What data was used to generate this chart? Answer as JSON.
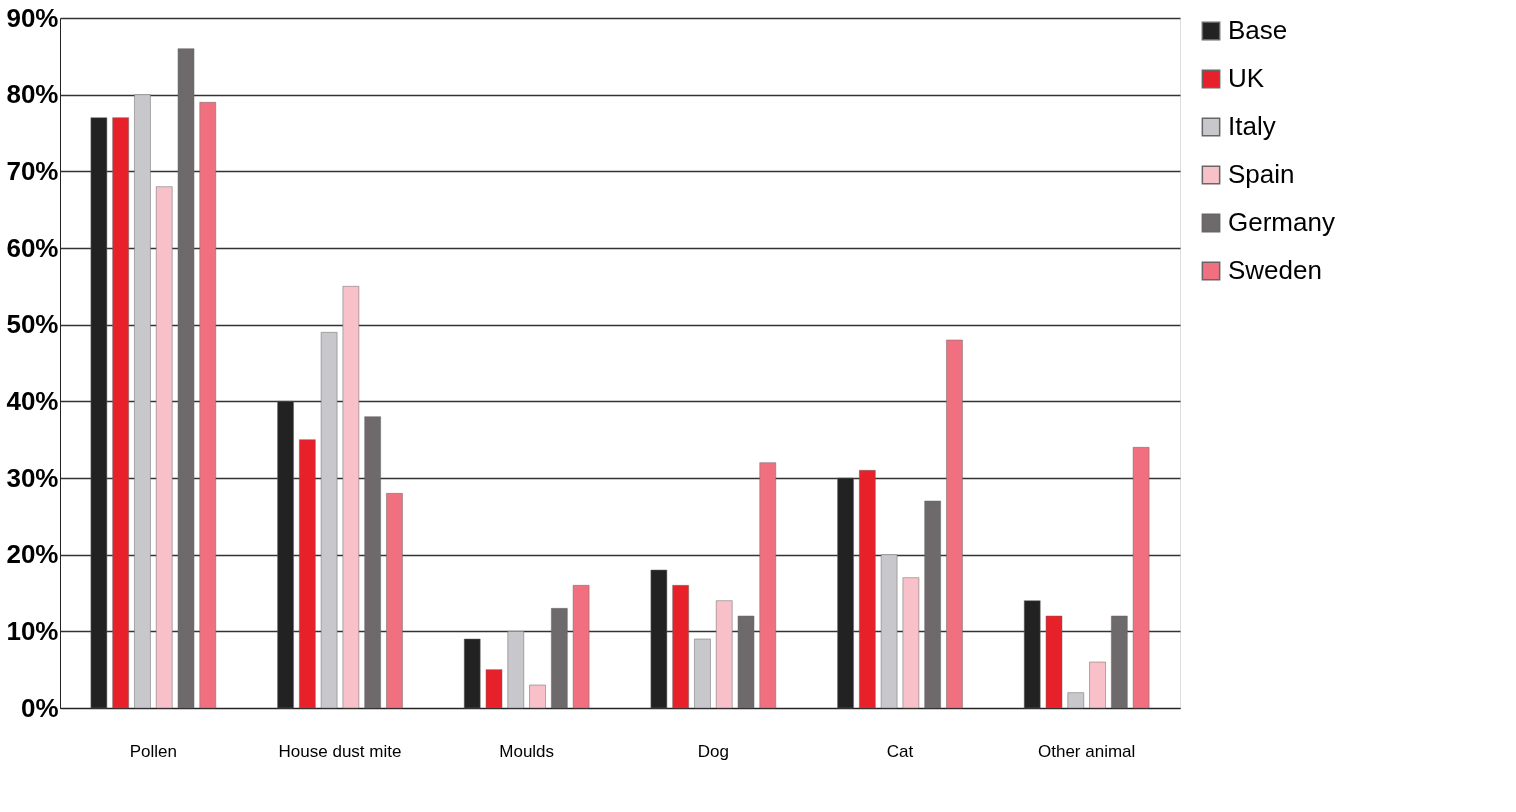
{
  "chart_data": {
    "type": "bar",
    "categories": [
      "Pollen",
      "House dust mite",
      "Moulds",
      "Dog",
      "Cat",
      "Other animal"
    ],
    "series": [
      {
        "name": "Base",
        "color": "#222222",
        "values": [
          77,
          40,
          9,
          18,
          30,
          14
        ]
      },
      {
        "name": "UK",
        "color": "#e8202a",
        "values": [
          77,
          35,
          5,
          16,
          31,
          12
        ]
      },
      {
        "name": "Italy",
        "color": "#c8c8cc",
        "values": [
          80,
          49,
          10,
          9,
          20,
          2
        ]
      },
      {
        "name": "Spain",
        "color": "#f8c0c8",
        "values": [
          68,
          55,
          3,
          14,
          17,
          6
        ]
      },
      {
        "name": "Germany",
        "color": "#6e6a6c",
        "values": [
          86,
          38,
          13,
          12,
          27,
          12
        ]
      },
      {
        "name": "Sweden",
        "color": "#f07080",
        "values": [
          79,
          28,
          16,
          32,
          48,
          34
        ]
      }
    ],
    "ylim": [
      0,
      90
    ],
    "yticks": [
      {
        "value": 0,
        "label": "0%"
      },
      {
        "value": 10,
        "label": "10%"
      },
      {
        "value": 20,
        "label": "20%"
      },
      {
        "value": 30,
        "label": "30%"
      },
      {
        "value": 40,
        "label": "40%"
      },
      {
        "value": 50,
        "label": "50%"
      },
      {
        "value": 60,
        "label": "60%"
      },
      {
        "value": 70,
        "label": "70%"
      },
      {
        "value": 80,
        "label": "80%"
      },
      {
        "value": 90,
        "label": "90%"
      }
    ],
    "grid": "y",
    "legend": "right"
  }
}
